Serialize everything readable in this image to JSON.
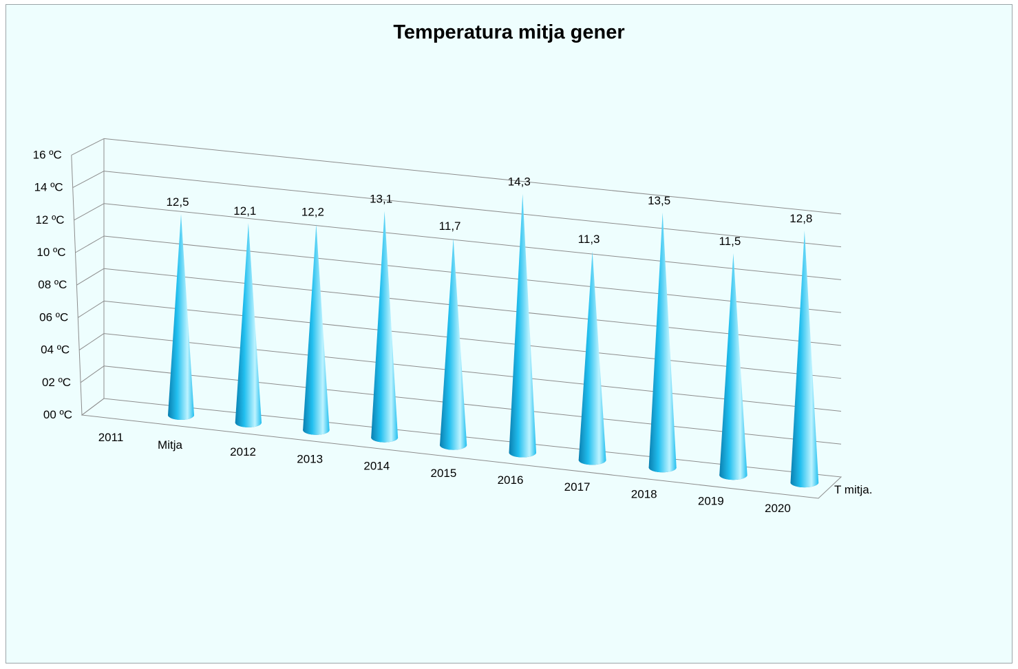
{
  "colors": {
    "background": "#eefefe",
    "cone_light": "#bdf3ff",
    "cone_mid": "#22bfef",
    "cone_dark": "#0a7fb0",
    "gridline": "#8c8c8c"
  },
  "chart_data": {
    "type": "bar",
    "bar_shape": "3d-cone",
    "title": "Temperatura mitja gener",
    "xlabel": "",
    "ylabel": "",
    "categories": [
      "2011",
      "2012",
      "2013",
      "2014",
      "2015",
      "2016",
      "2017",
      "2018",
      "2019",
      "2020"
    ],
    "values": [
      12.5,
      12.1,
      12.2,
      13.1,
      11.7,
      14.3,
      11.3,
      13.5,
      11.5,
      12.8
    ],
    "data_labels": [
      "12,5",
      "12,1",
      "12,2",
      "13,1",
      "11,7",
      "14,3",
      "11,3",
      "13,5",
      "11,5",
      "12,8"
    ],
    "ylim": [
      0,
      16
    ],
    "y_ticks": [
      "00 ºC",
      "02 ºC",
      "04 ºC",
      "06 ºC",
      "08 ºC",
      "10 ºC",
      "12 ºC",
      "14 ºC",
      "16 ºC"
    ],
    "series_axis_label": "T mitja.",
    "extra_axis_label": "Mitja",
    "grid": true,
    "legend": "none"
  }
}
